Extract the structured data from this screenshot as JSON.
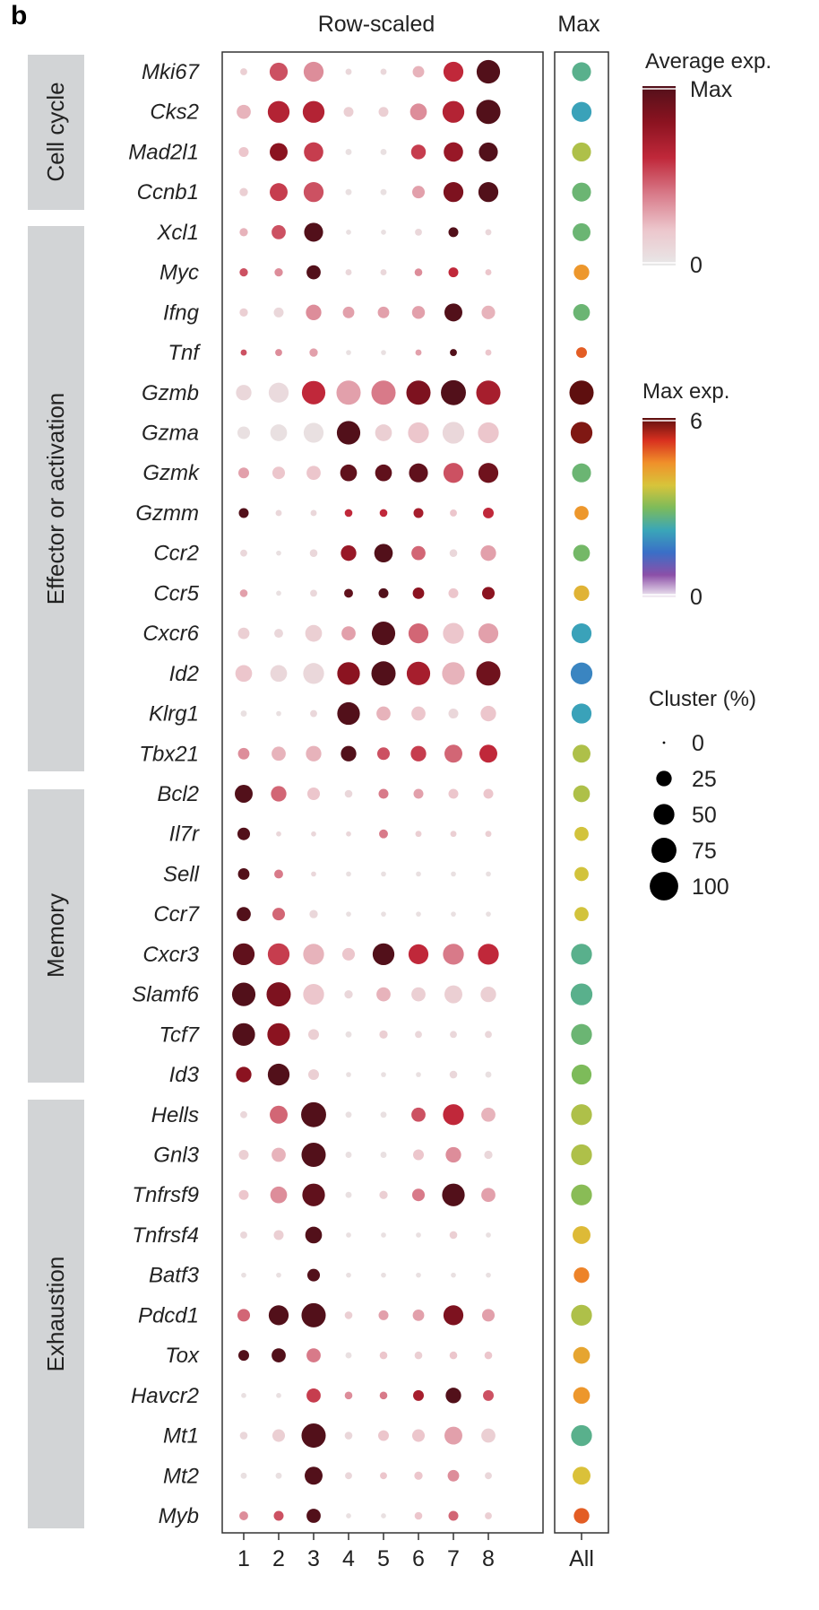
{
  "chart_data": {
    "type": "dotplot",
    "panel_label": "b",
    "title_main": "Row-scaled",
    "title_max": "Max",
    "clusters": [
      "1",
      "2",
      "3",
      "4",
      "5",
      "6",
      "7",
      "8"
    ],
    "all_label": "All",
    "groups": [
      {
        "name": "Cell cycle",
        "genes": [
          "Mki67",
          "Cks2",
          "Mad2l1",
          "Ccnb1"
        ]
      },
      {
        "name": "Effector or activation",
        "genes": [
          "Xcl1",
          "Myc",
          "Ifng",
          "Tnf",
          "Gzmb",
          "Gzma",
          "Gzmk",
          "Gzmm",
          "Ccr2",
          "Ccr5",
          "Cxcr6",
          "Id2",
          "Klrg1",
          "Tbx21"
        ]
      },
      {
        "name": "Memory",
        "genes": [
          "Bcl2",
          "Il7r",
          "Sell",
          "Ccr7",
          "Cxcr3",
          "Slamf6",
          "Tcf7",
          "Id3"
        ]
      },
      {
        "name": "Exhaustion",
        "genes": [
          "Hells",
          "Gnl3",
          "Tnfrsf9",
          "Tnfrsf4",
          "Batf3",
          "Pdcd1",
          "Tox",
          "Havcr2",
          "Mt1",
          "Mt2",
          "Myb"
        ]
      }
    ],
    "genes": [
      "Mki67",
      "Cks2",
      "Mad2l1",
      "Ccnb1",
      "Xcl1",
      "Myc",
      "Ifng",
      "Tnf",
      "Gzmb",
      "Gzma",
      "Gzmk",
      "Gzmm",
      "Ccr2",
      "Ccr5",
      "Cxcr6",
      "Id2",
      "Klrg1",
      "Tbx21",
      "Bcl2",
      "Il7r",
      "Sell",
      "Ccr7",
      "Cxcr3",
      "Slamf6",
      "Tcf7",
      "Id3",
      "Hells",
      "Gnl3",
      "Tnfrsf9",
      "Tnfrsf4",
      "Batf3",
      "Pdcd1",
      "Tox",
      "Havcr2",
      "Mt1",
      "Mt2",
      "Myb"
    ],
    "cluster_pct": [
      [
        3,
        36,
        45,
        2,
        2,
        12,
        45,
        65
      ],
      [
        20,
        55,
        55,
        8,
        8,
        30,
        55,
        70
      ],
      [
        8,
        35,
        42,
        2,
        2,
        22,
        42,
        40
      ],
      [
        5,
        35,
        45,
        2,
        2,
        15,
        45,
        45
      ],
      [
        5,
        20,
        40,
        1,
        1,
        3,
        8,
        2
      ],
      [
        5,
        5,
        20,
        2,
        2,
        4,
        8,
        2
      ],
      [
        5,
        8,
        25,
        12,
        12,
        16,
        35,
        18
      ],
      [
        2,
        3,
        5,
        1,
        1,
        2,
        3,
        2
      ],
      [
        25,
        45,
        65,
        70,
        70,
        70,
        75,
        70
      ],
      [
        15,
        30,
        45,
        65,
        30,
        50,
        55,
        50
      ],
      [
        10,
        15,
        20,
        30,
        30,
        40,
        45,
        45
      ],
      [
        8,
        2,
        2,
        4,
        4,
        8,
        3,
        10
      ],
      [
        3,
        1,
        4,
        25,
        38,
        20,
        4,
        25
      ],
      [
        4,
        1,
        3,
        6,
        8,
        12,
        8,
        15
      ],
      [
        12,
        6,
        30,
        20,
        65,
        45,
        50,
        45
      ],
      [
        30,
        30,
        50,
        60,
        70,
        65,
        60,
        70
      ],
      [
        2,
        1,
        3,
        60,
        20,
        20,
        8,
        25
      ],
      [
        12,
        20,
        25,
        25,
        15,
        25,
        35,
        35
      ],
      [
        35,
        25,
        15,
        4,
        8,
        8,
        8,
        8
      ],
      [
        15,
        1,
        1,
        1,
        6,
        2,
        2,
        2
      ],
      [
        12,
        6,
        1,
        1,
        1,
        1,
        1,
        1
      ],
      [
        20,
        15,
        5,
        1,
        1,
        1,
        1,
        1
      ],
      [
        55,
        55,
        50,
        15,
        55,
        45,
        50,
        50
      ],
      [
        65,
        70,
        50,
        5,
        20,
        20,
        35,
        25
      ],
      [
        60,
        60,
        10,
        2,
        5,
        3,
        3,
        3
      ],
      [
        25,
        55,
        10,
        1,
        1,
        1,
        4,
        2
      ],
      [
        3,
        35,
        75,
        2,
        2,
        20,
        50,
        20
      ],
      [
        8,
        20,
        70,
        2,
        2,
        10,
        25,
        5
      ],
      [
        8,
        30,
        60,
        2,
        5,
        15,
        60,
        20
      ],
      [
        3,
        8,
        30,
        1,
        1,
        1,
        4,
        1
      ],
      [
        1,
        1,
        15,
        1,
        1,
        1,
        1,
        1
      ],
      [
        15,
        45,
        70,
        4,
        8,
        12,
        45,
        15
      ],
      [
        10,
        20,
        20,
        2,
        4,
        4,
        4,
        4
      ],
      [
        1,
        1,
        20,
        4,
        4,
        10,
        25,
        10
      ],
      [
        4,
        15,
        70,
        4,
        10,
        15,
        35,
        20
      ],
      [
        2,
        2,
        35,
        3,
        3,
        5,
        12,
        3
      ],
      [
        6,
        8,
        20,
        1,
        1,
        4,
        8,
        3
      ]
    ],
    "scaled_exp": [
      [
        0.15,
        0.5,
        0.35,
        0.1,
        0.1,
        0.25,
        0.6,
        1.0
      ],
      [
        0.25,
        0.65,
        0.65,
        0.15,
        0.15,
        0.35,
        0.65,
        1.0
      ],
      [
        0.2,
        0.8,
        0.55,
        0.05,
        0.05,
        0.55,
        0.75,
        1.0
      ],
      [
        0.15,
        0.55,
        0.5,
        0.05,
        0.05,
        0.3,
        0.85,
        1.0
      ],
      [
        0.25,
        0.5,
        1.0,
        0.05,
        0.05,
        0.1,
        1.0,
        0.1
      ],
      [
        0.5,
        0.35,
        1.0,
        0.1,
        0.1,
        0.35,
        0.6,
        0.2
      ],
      [
        0.15,
        0.1,
        0.35,
        0.3,
        0.3,
        0.3,
        1.0,
        0.25
      ],
      [
        0.5,
        0.35,
        0.3,
        0.05,
        0.05,
        0.3,
        1.0,
        0.2
      ],
      [
        0.1,
        0.08,
        0.6,
        0.3,
        0.4,
        0.85,
        1.0,
        0.7
      ],
      [
        0.05,
        0.05,
        0.05,
        1.0,
        0.15,
        0.2,
        0.1,
        0.2
      ],
      [
        0.3,
        0.2,
        0.2,
        0.95,
        0.95,
        0.95,
        0.5,
        0.9
      ],
      [
        1.0,
        0.1,
        0.1,
        0.6,
        0.6,
        0.7,
        0.2,
        0.6
      ],
      [
        0.1,
        0.05,
        0.1,
        0.75,
        1.0,
        0.45,
        0.1,
        0.3
      ],
      [
        0.3,
        0.05,
        0.1,
        0.95,
        1.0,
        0.8,
        0.2,
        0.8
      ],
      [
        0.15,
        0.1,
        0.15,
        0.3,
        1.0,
        0.45,
        0.2,
        0.3
      ],
      [
        0.2,
        0.1,
        0.1,
        0.8,
        1.0,
        0.7,
        0.25,
        0.9
      ],
      [
        0.05,
        0.05,
        0.1,
        1.0,
        0.25,
        0.2,
        0.1,
        0.2
      ],
      [
        0.35,
        0.25,
        0.25,
        1.0,
        0.5,
        0.55,
        0.45,
        0.6
      ],
      [
        1.0,
        0.45,
        0.2,
        0.1,
        0.4,
        0.3,
        0.2,
        0.2
      ],
      [
        1.0,
        0.1,
        0.1,
        0.1,
        0.4,
        0.15,
        0.15,
        0.15
      ],
      [
        1.0,
        0.4,
        0.1,
        0.05,
        0.05,
        0.05,
        0.05,
        0.05
      ],
      [
        1.0,
        0.45,
        0.1,
        0.05,
        0.05,
        0.05,
        0.05,
        0.05
      ],
      [
        0.95,
        0.55,
        0.25,
        0.2,
        1.0,
        0.6,
        0.4,
        0.6
      ],
      [
        1.0,
        0.85,
        0.2,
        0.1,
        0.25,
        0.15,
        0.15,
        0.15
      ],
      [
        1.0,
        0.8,
        0.15,
        0.05,
        0.15,
        0.1,
        0.1,
        0.1
      ],
      [
        0.8,
        1.0,
        0.15,
        0.05,
        0.05,
        0.05,
        0.1,
        0.05
      ],
      [
        0.1,
        0.45,
        1.0,
        0.05,
        0.05,
        0.5,
        0.6,
        0.25
      ],
      [
        0.15,
        0.25,
        1.0,
        0.05,
        0.05,
        0.2,
        0.35,
        0.1
      ],
      [
        0.2,
        0.35,
        0.95,
        0.05,
        0.15,
        0.4,
        1.0,
        0.3
      ],
      [
        0.1,
        0.15,
        1.0,
        0.05,
        0.05,
        0.05,
        0.15,
        0.05
      ],
      [
        0.05,
        0.05,
        1.0,
        0.05,
        0.05,
        0.05,
        0.05,
        0.05
      ],
      [
        0.45,
        1.0,
        1.0,
        0.15,
        0.3,
        0.3,
        0.85,
        0.3
      ],
      [
        1.0,
        1.0,
        0.4,
        0.05,
        0.2,
        0.15,
        0.2,
        0.2
      ],
      [
        0.05,
        0.05,
        0.55,
        0.35,
        0.4,
        0.7,
        1.0,
        0.5
      ],
      [
        0.1,
        0.15,
        1.0,
        0.1,
        0.2,
        0.2,
        0.3,
        0.15
      ],
      [
        0.05,
        0.05,
        1.0,
        0.1,
        0.2,
        0.2,
        0.35,
        0.1
      ],
      [
        0.35,
        0.5,
        1.0,
        0.05,
        0.05,
        0.2,
        0.45,
        0.15
      ]
    ],
    "all_max_exp": [
      2.6,
      2.2,
      3.4,
      2.8,
      2.8,
      4.4,
      2.8,
      4.9,
      6.0,
      5.8,
      2.8,
      4.4,
      2.9,
      4.0,
      2.2,
      1.8,
      2.2,
      3.4,
      3.4,
      3.7,
      3.7,
      3.7,
      2.6,
      2.6,
      2.8,
      3.0,
      3.4,
      3.4,
      3.1,
      3.9,
      4.6,
      3.4,
      4.2,
      4.4,
      2.6,
      3.8,
      4.9
    ],
    "all_pct": [
      40,
      45,
      40,
      40,
      35,
      25,
      30,
      10,
      70,
      55,
      40,
      20,
      30,
      25,
      45,
      55,
      45,
      35,
      30,
      20,
      20,
      20,
      50,
      55,
      50,
      45,
      50,
      50,
      50,
      35,
      25,
      50,
      30,
      30,
      50,
      35,
      25
    ],
    "legend_avg": {
      "title": "Average exp.",
      "max_label": "Max",
      "min_label": "0",
      "colors": [
        "#e8e8e8",
        "#ecc6cc",
        "#d87a89",
        "#c0283a",
        "#8b1320",
        "#52101a"
      ]
    },
    "legend_max": {
      "title": "Max exp.",
      "max_label": "6",
      "min_label": "0",
      "colors": [
        "#f4f0f5",
        "#8c4fa8",
        "#3a6fc7",
        "#3aa6b8",
        "#7dbb5a",
        "#d8c43a",
        "#f0902a",
        "#d8301f",
        "#5e0f0f"
      ]
    },
    "legend_size": {
      "title": "Cluster (%)",
      "values": [
        0,
        25,
        50,
        75,
        100
      ],
      "labels": [
        "0",
        "25",
        "50",
        "75",
        "100"
      ]
    }
  }
}
